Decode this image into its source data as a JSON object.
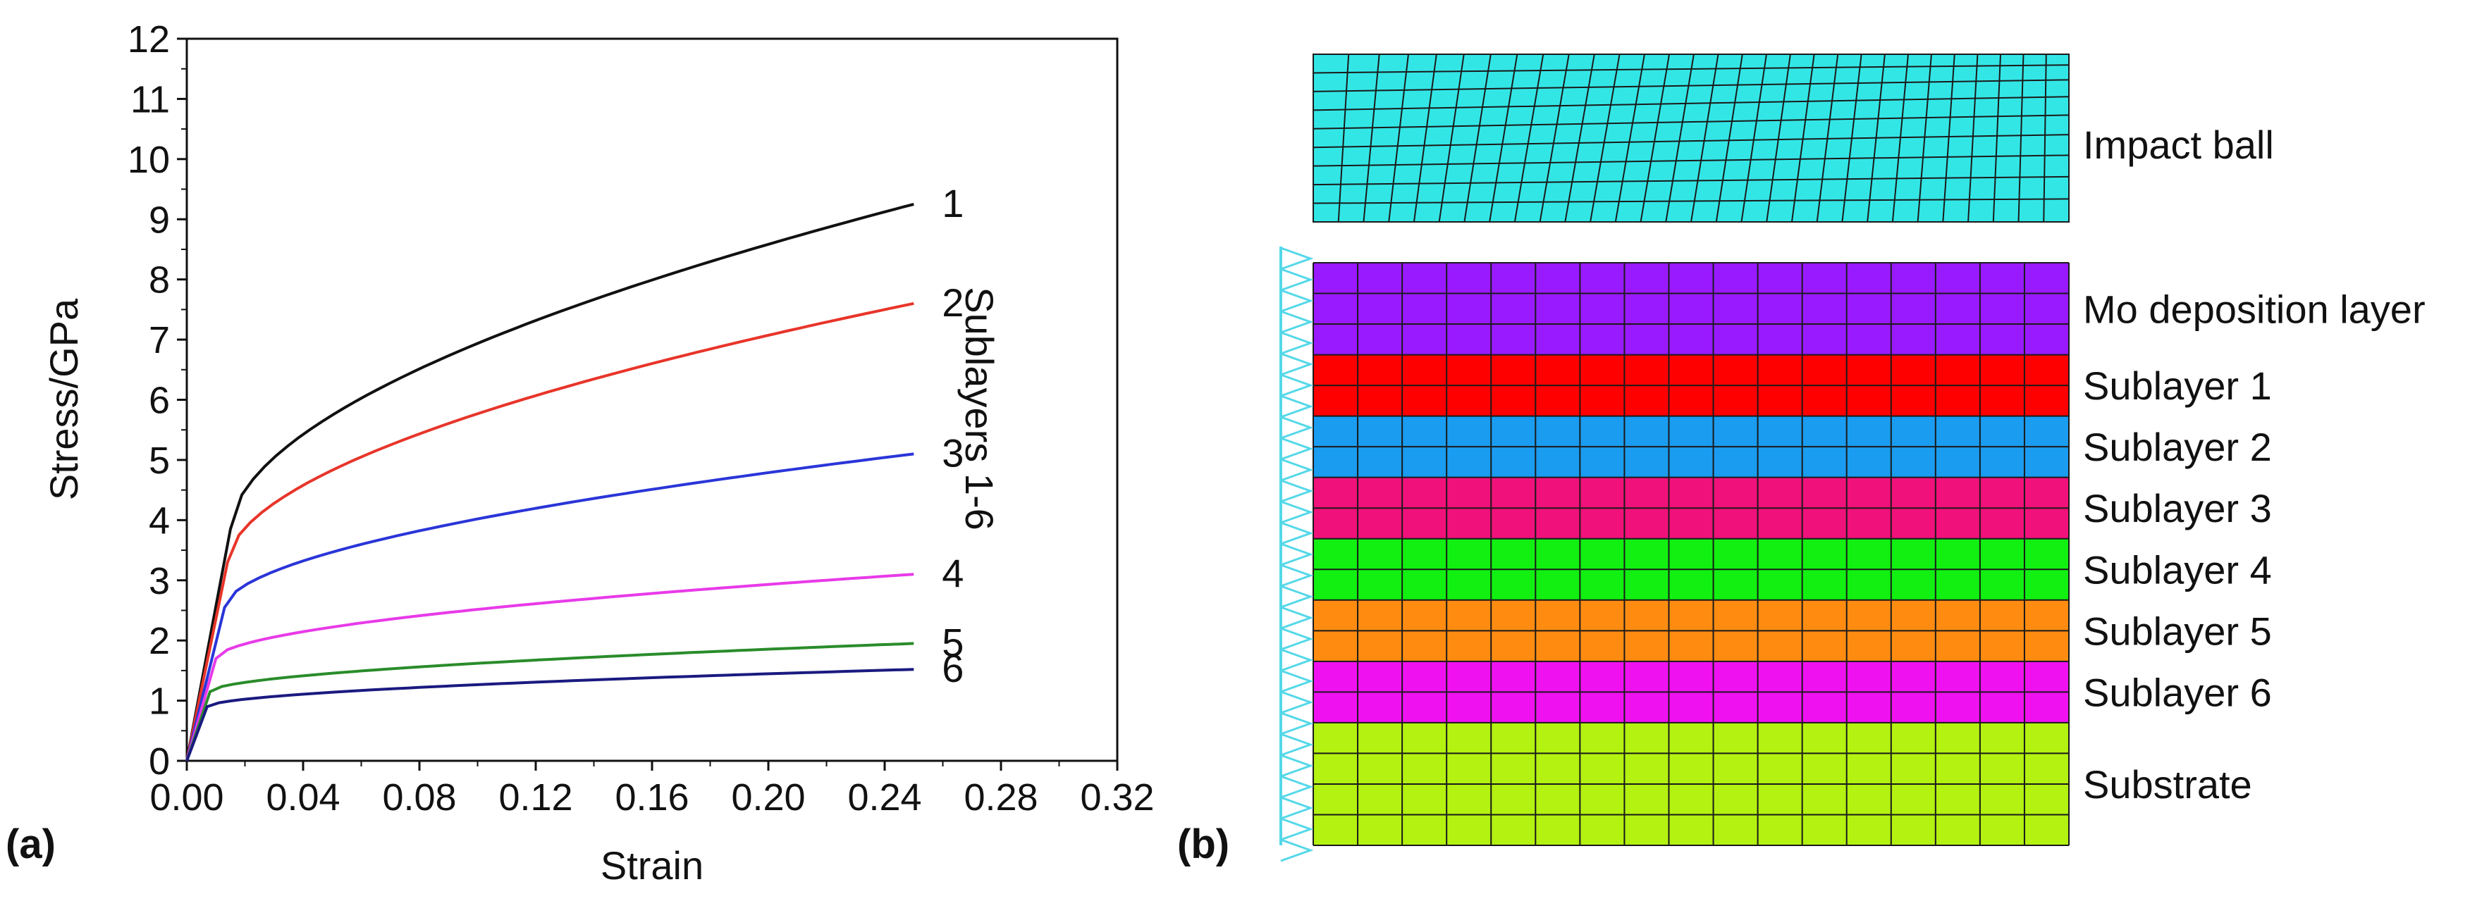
{
  "panel_a": {
    "label": "(a)",
    "sublayers_label": "Sublayers 1-6"
  },
  "panel_b": {
    "label": "(b)",
    "impact_ball": {
      "label": "Impact ball",
      "color": "#33e6e6"
    },
    "layers": [
      {
        "id": "mo",
        "label": "Mo deposition layer",
        "color": "#9a1aff",
        "rows": 3
      },
      {
        "id": "s1",
        "label": "Sublayer 1",
        "color": "#ff0000",
        "rows": 2
      },
      {
        "id": "s2",
        "label": "Sublayer 2",
        "color": "#1a9cf0",
        "rows": 2
      },
      {
        "id": "s3",
        "label": "Sublayer 3",
        "color": "#f0117a",
        "rows": 2
      },
      {
        "id": "s4",
        "label": "Sublayer 4",
        "color": "#11f011",
        "rows": 2
      },
      {
        "id": "s5",
        "label": "Sublayer 5",
        "color": "#ff8c11",
        "rows": 2
      },
      {
        "id": "s6",
        "label": "Sublayer 6",
        "color": "#f011f0",
        "rows": 2
      },
      {
        "id": "sub",
        "label": "Substrate",
        "color": "#b3f211",
        "rows": 4
      }
    ],
    "columns": 17,
    "constraint_color": "#55d8e8"
  },
  "chart_data": {
    "type": "line",
    "title": "",
    "xlabel": "Strain",
    "ylabel": "Stress/GPa",
    "xlim": [
      0,
      0.32
    ],
    "ylim": [
      0,
      12
    ],
    "xticks": [
      0.0,
      0.04,
      0.08,
      0.12,
      0.16,
      0.2,
      0.24,
      0.28,
      0.32
    ],
    "xtick_labels": [
      "0.00",
      "0.04",
      "0.08",
      "0.12",
      "0.16",
      "0.20",
      "0.24",
      "0.28",
      "0.32"
    ],
    "yticks": [
      0,
      1,
      2,
      3,
      4,
      5,
      6,
      7,
      8,
      9,
      10,
      11,
      12
    ],
    "ytick_labels": [
      "0",
      "1",
      "2",
      "3",
      "4",
      "5",
      "6",
      "7",
      "8",
      "9",
      "10",
      "11",
      "12"
    ],
    "series": [
      {
        "name": "1",
        "color": "#111111",
        "yield_strain": 0.015,
        "yield_stress": 3.85,
        "end_strain": 0.25,
        "end_stress": 9.25
      },
      {
        "name": "2",
        "color": "#e8352a",
        "yield_strain": 0.014,
        "yield_stress": 3.3,
        "end_strain": 0.25,
        "end_stress": 7.6
      },
      {
        "name": "3",
        "color": "#2a35d8",
        "yield_strain": 0.013,
        "yield_stress": 2.55,
        "end_strain": 0.25,
        "end_stress": 5.1
      },
      {
        "name": "4",
        "color": "#e83ae8",
        "yield_strain": 0.01,
        "yield_stress": 1.7,
        "end_strain": 0.25,
        "end_stress": 3.1
      },
      {
        "name": "5",
        "color": "#2a8c2a",
        "yield_strain": 0.008,
        "yield_stress": 1.15,
        "end_strain": 0.25,
        "end_stress": 1.95
      },
      {
        "name": "6",
        "color": "#1a1a80",
        "yield_strain": 0.007,
        "yield_stress": 0.9,
        "end_strain": 0.25,
        "end_stress": 1.52
      }
    ]
  }
}
